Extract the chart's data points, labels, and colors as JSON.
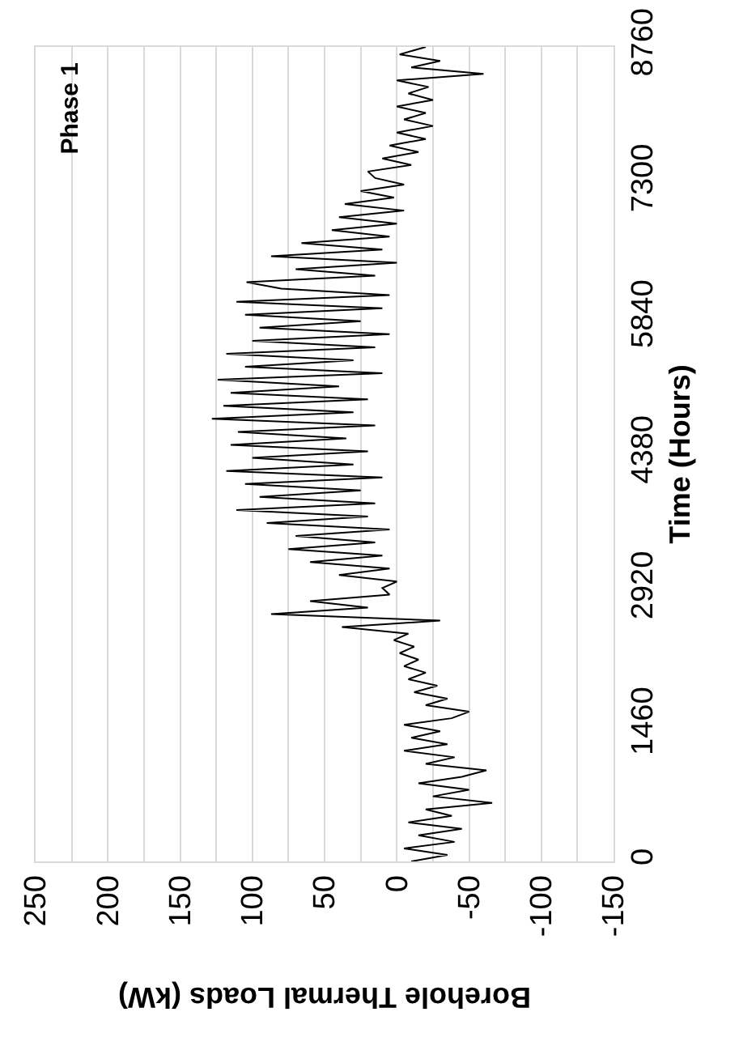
{
  "chart_data": {
    "type": "line",
    "xlabel": "Borehole Thermal Loads (kW)",
    "ylabel": "Time (Hours)",
    "annotations": [
      "Phase 1"
    ],
    "xlim": [
      250,
      -150
    ],
    "xticks": [
      250,
      {
        "value": 225,
        "label": null
      },
      200,
      {
        "value": 175,
        "label": null
      },
      150,
      {
        "value": 125,
        "label": null
      },
      100,
      {
        "value": 75,
        "label": null
      },
      50,
      {
        "value": 25,
        "label": null
      },
      0,
      {
        "value": -25,
        "label": null
      },
      -50,
      {
        "value": -75,
        "label": null
      },
      -100,
      {
        "value": -125,
        "label": null
      },
      -150
    ],
    "ylim": [
      0,
      8760
    ],
    "yticks": [
      0,
      1460,
      2920,
      4380,
      5840,
      7300,
      8760
    ],
    "grid": "x",
    "marker": "none",
    "line_style": "solid",
    "series": [
      {
        "color": "#000000",
        "x": [
          -10,
          -35,
          -5,
          -40,
          -15,
          -45,
          -8,
          -38,
          -20,
          -66,
          -25,
          -50,
          -15,
          -45,
          -62,
          -20,
          -40,
          -5,
          -35,
          -10,
          -30,
          -5,
          -38,
          -50,
          -20,
          -35,
          -12,
          -28,
          -8,
          -20,
          -5,
          -15,
          -2,
          -12,
          2,
          -8,
          38,
          -30,
          87,
          20,
          60,
          5,
          10,
          0,
          40,
          5,
          60,
          10,
          75,
          15,
          70,
          5,
          90,
          20,
          111,
          15,
          95,
          25,
          105,
          10,
          118,
          30,
          100,
          20,
          115,
          35,
          110,
          15,
          128,
          30,
          120,
          20,
          115,
          40,
          124,
          10,
          105,
          30,
          118,
          15,
          100,
          5,
          95,
          25,
          105,
          10,
          111,
          5,
          80,
          104,
          15,
          70,
          0,
          87,
          10,
          66,
          5,
          45,
          0,
          40,
          -5,
          36,
          2,
          25,
          -5,
          15,
          20,
          -10,
          10,
          -15,
          5,
          -20,
          0,
          -25,
          -5,
          -20,
          0,
          -25,
          -8,
          -22,
          0,
          -60,
          -10,
          -30,
          -2,
          -20
        ],
        "values": [
          0,
          70,
          140,
          210,
          280,
          350,
          420,
          490,
          560,
          630,
          700,
          770,
          840,
          910,
          980,
          1050,
          1120,
          1190,
          1260,
          1330,
          1400,
          1470,
          1540,
          1610,
          1680,
          1750,
          1820,
          1890,
          1960,
          2030,
          2100,
          2170,
          2240,
          2310,
          2380,
          2450,
          2520,
          2590,
          2660,
          2730,
          2800,
          2870,
          2940,
          3010,
          3080,
          3150,
          3220,
          3290,
          3360,
          3430,
          3500,
          3570,
          3640,
          3710,
          3780,
          3850,
          3920,
          3990,
          4060,
          4130,
          4200,
          4270,
          4340,
          4410,
          4480,
          4550,
          4620,
          4690,
          4760,
          4830,
          4900,
          4970,
          5040,
          5110,
          5180,
          5250,
          5320,
          5390,
          5460,
          5530,
          5600,
          5670,
          5740,
          5810,
          5880,
          5950,
          6020,
          6090,
          6160,
          6230,
          6300,
          6370,
          6440,
          6510,
          6580,
          6650,
          6720,
          6790,
          6860,
          6930,
          7000,
          7070,
          7140,
          7210,
          7280,
          7350,
          7420,
          7490,
          7560,
          7630,
          7700,
          7770,
          7840,
          7910,
          7980,
          8050,
          8120,
          8190,
          8260,
          8330,
          8400,
          8470,
          8540,
          8610,
          8680,
          8760
        ]
      }
    ]
  }
}
